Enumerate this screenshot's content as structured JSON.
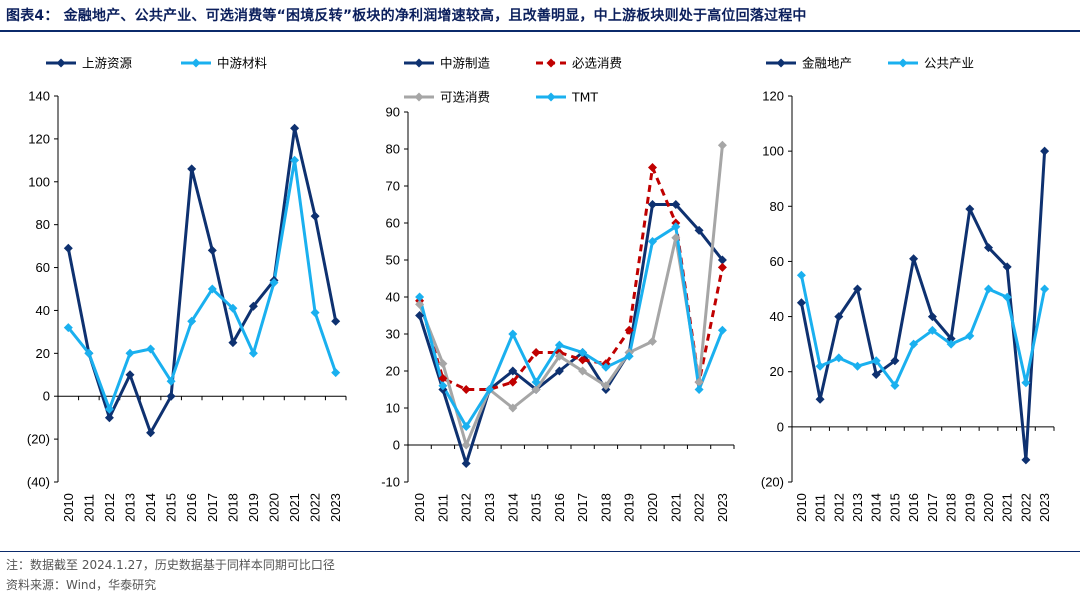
{
  "title": "图表4：  金融地产、公共产业、可选消费等“困境反转”板块的净利润增速较高，且改善明显，中上游板块则处于高位回落过程中",
  "note": "注：数据截至 2024.1.27，历史数据基于同样本同期可比口径",
  "source": "资料来源：Wind，华泰研究",
  "colors": {
    "dark_navy": "#0e3170",
    "light_blue": "#1ab0ef",
    "dark_red": "#c00000",
    "gray": "#a6a6a6"
  },
  "chart_data": [
    {
      "type": "line",
      "categories": [
        "2010",
        "2011",
        "2012",
        "2013",
        "2014",
        "2015",
        "2016",
        "2017",
        "2018",
        "2019",
        "2020",
        "2021",
        "2022",
        "2023"
      ],
      "ylim": [
        -40,
        140
      ],
      "yticks": [
        -40,
        -20,
        0,
        20,
        40,
        60,
        80,
        100,
        120,
        140
      ],
      "ytick_labels": [
        "(40)",
        "(20)",
        "0",
        "20",
        "40",
        "60",
        "80",
        "100",
        "120",
        "140"
      ],
      "legend_rows": [
        [
          0,
          1
        ]
      ],
      "series": [
        {
          "name": "上游资源",
          "color": "#0e3170",
          "dash": "",
          "values": [
            69,
            20,
            -10,
            10,
            -17,
            0,
            106,
            68,
            25,
            42,
            54,
            125,
            84,
            35
          ]
        },
        {
          "name": "中游材料",
          "color": "#1ab0ef",
          "dash": "",
          "values": [
            32,
            20,
            -6,
            20,
            22,
            7,
            35,
            50,
            41,
            20,
            53,
            110,
            39,
            11
          ]
        }
      ]
    },
    {
      "type": "line",
      "categories": [
        "2010",
        "2011",
        "2012",
        "2013",
        "2014",
        "2015",
        "2016",
        "2017",
        "2018",
        "2019",
        "2020",
        "2021",
        "2022",
        "2023"
      ],
      "ylim": [
        -10,
        90
      ],
      "yticks": [
        -10,
        0,
        10,
        20,
        30,
        40,
        50,
        60,
        70,
        80,
        90
      ],
      "ytick_labels": [
        "-10",
        "0",
        "10",
        "20",
        "30",
        "40",
        "50",
        "60",
        "70",
        "80",
        "90"
      ],
      "legend_rows": [
        [
          0,
          1
        ],
        [
          2,
          3
        ]
      ],
      "series": [
        {
          "name": "中游制造",
          "color": "#0e3170",
          "dash": "",
          "values": [
            35,
            15,
            -5,
            15,
            20,
            15,
            20,
            25,
            15,
            25,
            65,
            65,
            58,
            50
          ]
        },
        {
          "name": "必选消费",
          "color": "#c00000",
          "dash": "7,5",
          "values": [
            39,
            18,
            15,
            15,
            17,
            25,
            25,
            23,
            22,
            31,
            75,
            60,
            17,
            48
          ]
        },
        {
          "name": "可选消费",
          "color": "#a6a6a6",
          "dash": "",
          "values": [
            38,
            22,
            0,
            15,
            10,
            15,
            24,
            20,
            16,
            25,
            28,
            56,
            17,
            81
          ]
        },
        {
          "name": "TMT",
          "color": "#1ab0ef",
          "dash": "",
          "values": [
            40,
            16,
            5,
            15,
            30,
            17,
            27,
            25,
            21,
            24,
            55,
            59,
            15,
            31
          ]
        }
      ]
    },
    {
      "type": "line",
      "categories": [
        "2010",
        "2011",
        "2012",
        "2013",
        "2014",
        "2015",
        "2016",
        "2017",
        "2018",
        "2019",
        "2020",
        "2021",
        "2022",
        "2023"
      ],
      "ylim": [
        -20,
        120
      ],
      "yticks": [
        -20,
        0,
        20,
        40,
        60,
        80,
        100,
        120
      ],
      "ytick_labels": [
        "(20)",
        "0",
        "20",
        "40",
        "60",
        "80",
        "100",
        "120"
      ],
      "legend_rows": [
        [
          0,
          1
        ]
      ],
      "series": [
        {
          "name": "金融地产",
          "color": "#0e3170",
          "dash": "",
          "values": [
            45,
            10,
            40,
            50,
            19,
            24,
            61,
            40,
            32,
            79,
            65,
            58,
            -12,
            100
          ]
        },
        {
          "name": "公共产业",
          "color": "#1ab0ef",
          "dash": "",
          "values": [
            55,
            22,
            25,
            22,
            24,
            15,
            30,
            35,
            30,
            33,
            50,
            47,
            16,
            50
          ]
        }
      ]
    }
  ]
}
